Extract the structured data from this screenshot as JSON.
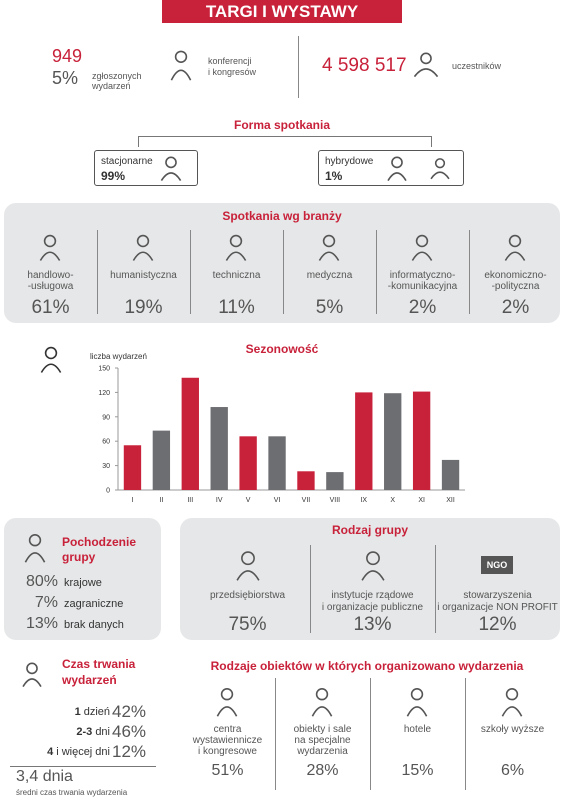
{
  "header": {
    "title": "TARGI I WYSTAWY"
  },
  "summary": {
    "events_count": "949",
    "events_share": "5%",
    "events_label": [
      "zgłoszonych",
      "wydarzeń"
    ],
    "events_type": [
      "konferencji",
      "i kongresów"
    ],
    "participants": "4 598 517",
    "participants_label": "uczestników"
  },
  "meeting_form": {
    "title": "Forma spotkania",
    "items": [
      {
        "label": "stacjonarne",
        "value": "99%"
      },
      {
        "label": "hybrydowe",
        "value": "1%"
      }
    ]
  },
  "industries": {
    "title": "Spotkania wg branży",
    "items": [
      {
        "label": [
          "handlowo-",
          "-usługowa"
        ],
        "value": "61%"
      },
      {
        "label": [
          "humanistyczna"
        ],
        "value": "19%"
      },
      {
        "label": [
          "techniczna"
        ],
        "value": "11%"
      },
      {
        "label": [
          "medyczna"
        ],
        "value": "5%"
      },
      {
        "label": [
          "informatyczno-",
          "-komunikacyjna"
        ],
        "value": "2%"
      },
      {
        "label": [
          "ekonomiczno-",
          "-polityczna"
        ],
        "value": "2%"
      }
    ]
  },
  "seasonality": {
    "type": "bar",
    "title": "Sezonowość",
    "y_label": "liczba wydarzeń",
    "categories": [
      "I",
      "II",
      "III",
      "IV",
      "V",
      "VI",
      "VII",
      "VIII",
      "IX",
      "X",
      "XI",
      "XII"
    ],
    "values": [
      55,
      73,
      138,
      102,
      66,
      66,
      23,
      22,
      120,
      119,
      121,
      37
    ],
    "colors": [
      "#c8213a",
      "#6d6e71",
      "#c8213a",
      "#6d6e71",
      "#c8213a",
      "#6d6e71",
      "#c8213a",
      "#6d6e71",
      "#c8213a",
      "#6d6e71",
      "#c8213a",
      "#6d6e71"
    ],
    "ylim": [
      0,
      150
    ],
    "yticks": [
      0,
      30,
      60,
      90,
      120,
      150
    ]
  },
  "origin": {
    "title": [
      "Pochodzenie",
      "grupy"
    ],
    "items": [
      {
        "value": "80%",
        "label": "krajowe"
      },
      {
        "value": "7%",
        "label": "zagraniczne"
      },
      {
        "value": "13%",
        "label": "brak danych"
      }
    ]
  },
  "group_type": {
    "title": "Rodzaj grupy",
    "items": [
      {
        "label": [
          "przedsiębiorstwa"
        ],
        "value": "75%"
      },
      {
        "label": [
          "instytucje rządowe",
          "i organizacje publiczne"
        ],
        "value": "13%"
      },
      {
        "label": [
          "stowarzyszenia",
          "i organizacje NON PROFIT"
        ],
        "value": "12%"
      }
    ],
    "icon_text": "NGO"
  },
  "duration": {
    "title": [
      "Czas trwania",
      "wydarzeń"
    ],
    "rows": [
      {
        "count": "1",
        "unit": "dzień",
        "value": "42%"
      },
      {
        "count": "2-3",
        "unit": "dni",
        "value": "46%"
      },
      {
        "count": "4",
        "unit": "i więcej dni",
        "value": "12%"
      }
    ],
    "average": "3,4 dnia",
    "average_label": "średni czas trwania wydarzenia"
  },
  "venues": {
    "title": "Rodzaje obiektów w których organizowano wydarzenia",
    "items": [
      {
        "label": [
          "centra",
          "wystawiennicze",
          "i kongresowe"
        ],
        "value": "51%"
      },
      {
        "label": [
          "obiekty i sale",
          "na specjalne",
          "wydarzenia"
        ],
        "value": "28%"
      },
      {
        "label": [
          "hotele"
        ],
        "value": "15%"
      },
      {
        "label": [
          "szkoły wyższe"
        ],
        "value": "6%"
      }
    ]
  }
}
